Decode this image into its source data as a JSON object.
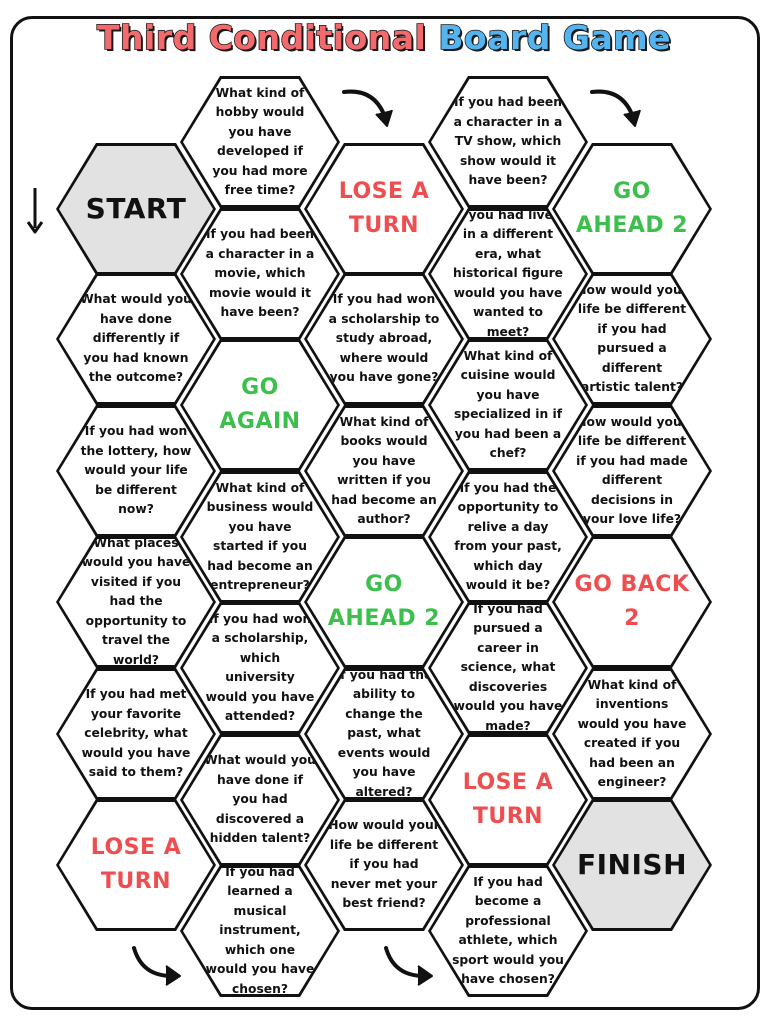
{
  "title": {
    "part1": "Third Conditional",
    "part2": "Board Game"
  },
  "colors": {
    "title_red": "#f36a6d",
    "title_blue": "#54b4f0",
    "action_green": "#3cbf4c",
    "action_red": "#ee4e4f",
    "special_grey": "#e2e2e2"
  },
  "spaces": {
    "start": "START",
    "finish": "FINISH",
    "c1r1": "What would you have done differently if you had known the outcome?",
    "c1r2": "If you had won the lottery, how would your life be different now?",
    "c1r3": "What places would you have visited if you had the opportunity to travel the world?",
    "c1r4": "If you had met your favorite celebrity, what would you have said to them?",
    "c1r5": "LOSE A TURN",
    "c2r0": "What kind of hobby would you have developed if you had more free time?",
    "c2r1": "If you had been a character in a movie, which movie would it have been?",
    "c2r2": "GO AGAIN",
    "c2r3": "What kind of business would you have started if you had become an entrepreneur?",
    "c2r4": "If you had won a scholarship, which university would you have attended?",
    "c2r5": "What would you have done if you had discovered a hidden talent?",
    "c2r6": "If you had learned a musical instrument, which one would you have chosen?",
    "c3r1": "LOSE A TURN",
    "c3r2": "If you had won a scholarship to study abroad, where would you have gone?",
    "c3r3": "What kind of books would you have written if you had become an author?",
    "c3r4": "GO AHEAD 2",
    "c3r5": "If you had the ability to change the past, what events would you have altered?",
    "c3r6": "How would your life be different if you had never met your best friend?",
    "c4r0": "If you had been a character in a TV show, which show would it have been?",
    "c4r1": "If you had lived in a different era, what historical figure would you have wanted to meet?",
    "c4r2": "What kind of cuisine would you have specialized in if you had been a chef?",
    "c4r3": "If you had the opportunity to relive a day from your past, which day would it be?",
    "c4r4": "If you had pursued a career in science, what discoveries would you have made?",
    "c4r5": "LOSE A TURN",
    "c4r6": "If you had become a professional athlete, which sport would you have chosen?",
    "c5r1": "GO AHEAD 2",
    "c5r2": "How would your life be different if you had pursued a different artistic talent?",
    "c5r3": "How would your life be different if you had made different decisions in your love life?",
    "c5r4": "GO BACK 2",
    "c5r5": "What kind of inventions would you have created if you had been an engineer?"
  }
}
